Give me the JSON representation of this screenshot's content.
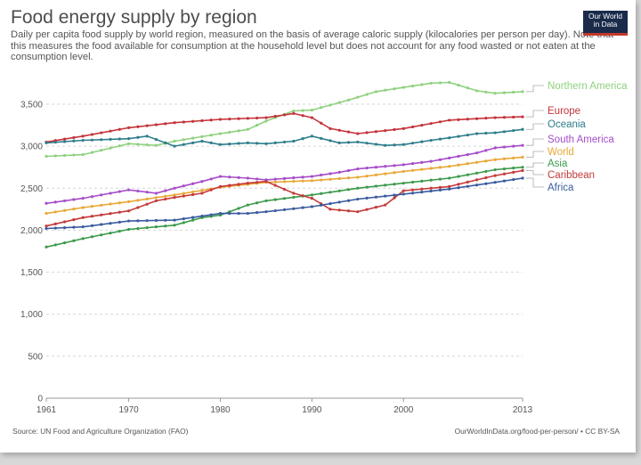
{
  "header": {
    "title": "Food energy supply by region",
    "subtitle": "Daily per capita food supply by world region, measured on the basis of average caloric supply (kilocalories per person per day). Note that this measures the food available for consumption at the household level but does not account for any food wasted or not eaten at the consumption level.",
    "logo_line1": "Our World",
    "logo_line2": "in Data"
  },
  "footer": {
    "source": "Source: UN Food and Agriculture Organization (FAO)",
    "license": "OurWorldInData.org/food-per-person/ • CC BY-SA"
  },
  "chart_data": {
    "type": "line",
    "title": "Food energy supply by region",
    "xlabel": "",
    "ylabel": "",
    "xlim": [
      1961,
      2013
    ],
    "ylim": [
      0,
      3500
    ],
    "x_ticks": [
      1961,
      1970,
      1980,
      1990,
      2000,
      2013
    ],
    "y_ticks": [
      0,
      500,
      1000,
      1500,
      2000,
      2500,
      3000,
      3500
    ],
    "y_tick_labels": [
      "0",
      "500",
      "1,000",
      "1,500",
      "2,000",
      "2,500",
      "3,000",
      "3,500"
    ],
    "grid": "horizontal dashed",
    "legend": "right (labels at line ends)",
    "series": [
      {
        "name": "Northern America",
        "color": "#8fd17f",
        "points": [
          [
            1961,
            2880
          ],
          [
            1965,
            2900
          ],
          [
            1970,
            3030
          ],
          [
            1973,
            3010
          ],
          [
            1975,
            3060
          ],
          [
            1980,
            3150
          ],
          [
            1983,
            3200
          ],
          [
            1985,
            3300
          ],
          [
            1988,
            3420
          ],
          [
            1990,
            3430
          ],
          [
            1994,
            3550
          ],
          [
            1997,
            3650
          ],
          [
            2000,
            3700
          ],
          [
            2003,
            3750
          ],
          [
            2005,
            3760
          ],
          [
            2008,
            3660
          ],
          [
            2010,
            3630
          ],
          [
            2013,
            3650
          ]
        ]
      },
      {
        "name": "Europe",
        "color": "#c4343b",
        "points": [
          [
            1961,
            3050
          ],
          [
            1965,
            3120
          ],
          [
            1970,
            3220
          ],
          [
            1975,
            3280
          ],
          [
            1980,
            3320
          ],
          [
            1985,
            3340
          ],
          [
            1988,
            3390
          ],
          [
            1990,
            3340
          ],
          [
            1992,
            3210
          ],
          [
            1995,
            3150
          ],
          [
            2000,
            3210
          ],
          [
            2005,
            3310
          ],
          [
            2010,
            3340
          ],
          [
            2013,
            3350
          ]
        ]
      },
      {
        "name": "Oceania",
        "color": "#2e7d8c",
        "points": [
          [
            1961,
            3040
          ],
          [
            1965,
            3070
          ],
          [
            1970,
            3090
          ],
          [
            1972,
            3120
          ],
          [
            1975,
            3000
          ],
          [
            1978,
            3060
          ],
          [
            1980,
            3020
          ],
          [
            1983,
            3040
          ],
          [
            1985,
            3030
          ],
          [
            1988,
            3060
          ],
          [
            1990,
            3120
          ],
          [
            1993,
            3040
          ],
          [
            1995,
            3050
          ],
          [
            1998,
            3010
          ],
          [
            2000,
            3020
          ],
          [
            2003,
            3070
          ],
          [
            2005,
            3100
          ],
          [
            2008,
            3150
          ],
          [
            2010,
            3160
          ],
          [
            2013,
            3200
          ]
        ]
      },
      {
        "name": "South America",
        "color": "#a64dc9",
        "points": [
          [
            1961,
            2320
          ],
          [
            1965,
            2380
          ],
          [
            1970,
            2480
          ],
          [
            1973,
            2440
          ],
          [
            1975,
            2500
          ],
          [
            1978,
            2580
          ],
          [
            1980,
            2640
          ],
          [
            1983,
            2620
          ],
          [
            1985,
            2600
          ],
          [
            1990,
            2640
          ],
          [
            1993,
            2690
          ],
          [
            1995,
            2730
          ],
          [
            2000,
            2780
          ],
          [
            2003,
            2820
          ],
          [
            2005,
            2860
          ],
          [
            2008,
            2920
          ],
          [
            2010,
            2980
          ],
          [
            2013,
            3010
          ]
        ]
      },
      {
        "name": "World",
        "color": "#e8a838",
        "points": [
          [
            1961,
            2200
          ],
          [
            1965,
            2270
          ],
          [
            1970,
            2340
          ],
          [
            1975,
            2420
          ],
          [
            1980,
            2510
          ],
          [
            1985,
            2570
          ],
          [
            1990,
            2590
          ],
          [
            1995,
            2630
          ],
          [
            2000,
            2700
          ],
          [
            2005,
            2760
          ],
          [
            2010,
            2840
          ],
          [
            2013,
            2870
          ]
        ]
      },
      {
        "name": "Asia",
        "color": "#3c9a4b",
        "points": [
          [
            1961,
            1800
          ],
          [
            1965,
            1900
          ],
          [
            1970,
            2010
          ],
          [
            1973,
            2040
          ],
          [
            1975,
            2060
          ],
          [
            1978,
            2150
          ],
          [
            1980,
            2180
          ],
          [
            1983,
            2300
          ],
          [
            1985,
            2350
          ],
          [
            1990,
            2420
          ],
          [
            1995,
            2500
          ],
          [
            2000,
            2560
          ],
          [
            2005,
            2620
          ],
          [
            2010,
            2720
          ],
          [
            2013,
            2750
          ]
        ]
      },
      {
        "name": "Caribbean",
        "color": "#c43a3a",
        "points": [
          [
            1961,
            2050
          ],
          [
            1965,
            2150
          ],
          [
            1970,
            2230
          ],
          [
            1973,
            2350
          ],
          [
            1975,
            2390
          ],
          [
            1978,
            2440
          ],
          [
            1980,
            2520
          ],
          [
            1983,
            2560
          ],
          [
            1985,
            2580
          ],
          [
            1988,
            2440
          ],
          [
            1990,
            2380
          ],
          [
            1992,
            2250
          ],
          [
            1995,
            2220
          ],
          [
            1998,
            2300
          ],
          [
            2000,
            2470
          ],
          [
            2005,
            2520
          ],
          [
            2008,
            2600
          ],
          [
            2010,
            2650
          ],
          [
            2013,
            2710
          ]
        ]
      },
      {
        "name": "Africa",
        "color": "#3a5ba0",
        "points": [
          [
            1961,
            2020
          ],
          [
            1965,
            2040
          ],
          [
            1970,
            2110
          ],
          [
            1975,
            2120
          ],
          [
            1980,
            2200
          ],
          [
            1983,
            2200
          ],
          [
            1985,
            2220
          ],
          [
            1990,
            2280
          ],
          [
            1995,
            2370
          ],
          [
            2000,
            2430
          ],
          [
            2005,
            2490
          ],
          [
            2010,
            2570
          ],
          [
            2013,
            2620
          ]
        ]
      }
    ]
  }
}
